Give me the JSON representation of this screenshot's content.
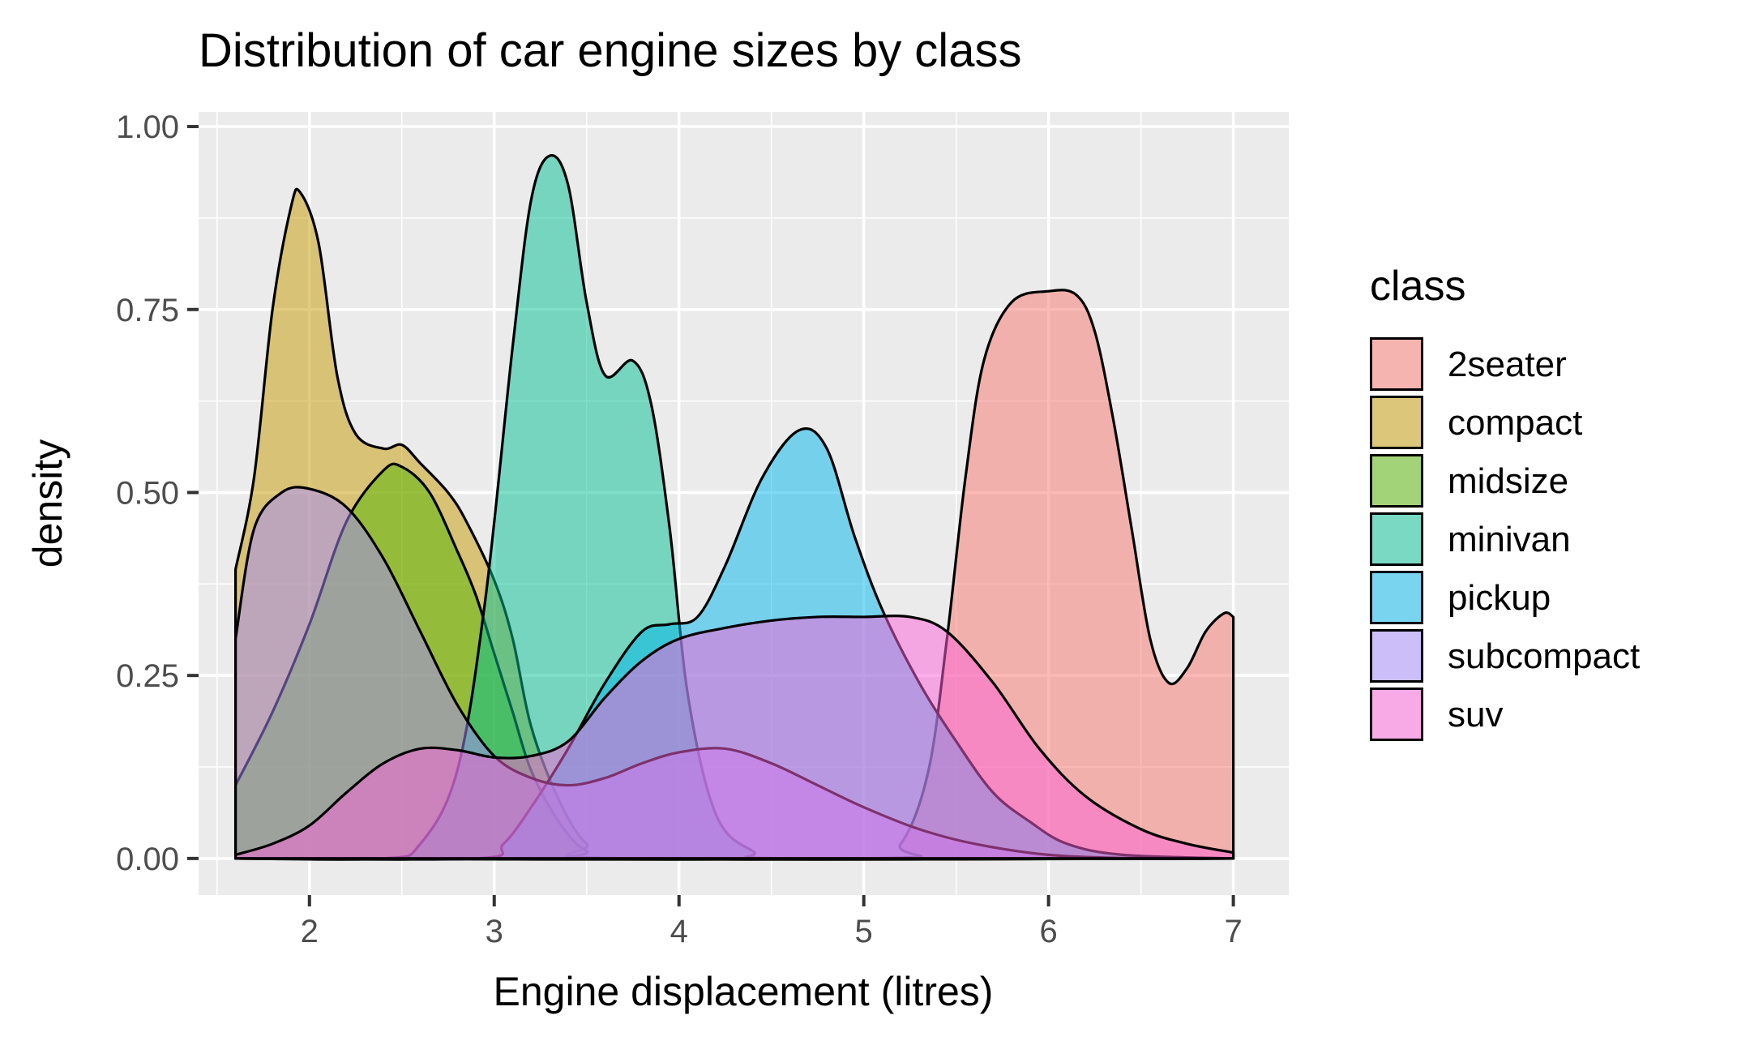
{
  "chart_data": {
    "type": "area",
    "title": "Distribution of car engine sizes by class",
    "xlabel": "Engine displacement (litres)",
    "ylabel": "density",
    "xlim": [
      1.4,
      7.3
    ],
    "ylim": [
      -0.05,
      1.02
    ],
    "x_ticks": [
      2,
      3,
      4,
      5,
      6,
      7
    ],
    "x_tick_labels": [
      "2",
      "3",
      "4",
      "5",
      "6",
      "7"
    ],
    "y_ticks": [
      0,
      0.25,
      0.5,
      0.75,
      1.0
    ],
    "y_tick_labels": [
      "0.00",
      "0.25",
      "0.50",
      "0.75",
      "1.00"
    ],
    "grid": true,
    "legend": {
      "title": "class",
      "placement": "right",
      "entries": [
        "2seater",
        "compact",
        "midsize",
        "minivan",
        "pickup",
        "subcompact",
        "suv"
      ]
    },
    "series": [
      {
        "name": "2seater",
        "color": "#F8766D",
        "points": [
          [
            1.6,
            0.0
          ],
          [
            5.0,
            0.0
          ],
          [
            5.2,
            0.02
          ],
          [
            5.35,
            0.12
          ],
          [
            5.45,
            0.3
          ],
          [
            5.55,
            0.52
          ],
          [
            5.65,
            0.68
          ],
          [
            5.8,
            0.76
          ],
          [
            6.0,
            0.775
          ],
          [
            6.15,
            0.77
          ],
          [
            6.25,
            0.72
          ],
          [
            6.35,
            0.6
          ],
          [
            6.45,
            0.45
          ],
          [
            6.55,
            0.3
          ],
          [
            6.65,
            0.24
          ],
          [
            6.75,
            0.26
          ],
          [
            6.85,
            0.31
          ],
          [
            6.95,
            0.335
          ],
          [
            7.0,
            0.33
          ]
        ]
      },
      {
        "name": "compact",
        "color": "#C49A00",
        "points": [
          [
            1.6,
            0.395
          ],
          [
            1.7,
            0.52
          ],
          [
            1.8,
            0.75
          ],
          [
            1.9,
            0.89
          ],
          [
            1.95,
            0.91
          ],
          [
            2.05,
            0.84
          ],
          [
            2.15,
            0.66
          ],
          [
            2.25,
            0.58
          ],
          [
            2.4,
            0.56
          ],
          [
            2.5,
            0.565
          ],
          [
            2.6,
            0.54
          ],
          [
            2.75,
            0.5
          ],
          [
            2.85,
            0.46
          ],
          [
            3.0,
            0.38
          ],
          [
            3.1,
            0.3
          ],
          [
            3.2,
            0.18
          ],
          [
            3.35,
            0.08
          ],
          [
            3.5,
            0.02
          ],
          [
            3.7,
            0.0
          ],
          [
            7.0,
            0.0
          ]
        ]
      },
      {
        "name": "midsize",
        "color": "#53B400",
        "points": [
          [
            1.6,
            0.1
          ],
          [
            1.8,
            0.2
          ],
          [
            2.0,
            0.32
          ],
          [
            2.2,
            0.46
          ],
          [
            2.4,
            0.53
          ],
          [
            2.5,
            0.535
          ],
          [
            2.65,
            0.5
          ],
          [
            2.8,
            0.42
          ],
          [
            2.9,
            0.36
          ],
          [
            3.0,
            0.28
          ],
          [
            3.1,
            0.2
          ],
          [
            3.2,
            0.12
          ],
          [
            3.35,
            0.05
          ],
          [
            3.5,
            0.01
          ],
          [
            3.7,
            0.0
          ],
          [
            7.0,
            0.0
          ]
        ]
      },
      {
        "name": "minivan",
        "color": "#00C094",
        "points": [
          [
            1.6,
            0.0
          ],
          [
            2.4,
            0.0
          ],
          [
            2.6,
            0.02
          ],
          [
            2.8,
            0.12
          ],
          [
            2.95,
            0.35
          ],
          [
            3.1,
            0.7
          ],
          [
            3.2,
            0.9
          ],
          [
            3.3,
            0.96
          ],
          [
            3.4,
            0.92
          ],
          [
            3.5,
            0.76
          ],
          [
            3.6,
            0.66
          ],
          [
            3.75,
            0.68
          ],
          [
            3.85,
            0.62
          ],
          [
            3.95,
            0.45
          ],
          [
            4.05,
            0.22
          ],
          [
            4.2,
            0.06
          ],
          [
            4.4,
            0.01
          ],
          [
            4.6,
            0.0
          ],
          [
            7.0,
            0.0
          ]
        ]
      },
      {
        "name": "pickup",
        "color": "#00B6EB",
        "points": [
          [
            1.6,
            0.0
          ],
          [
            2.9,
            0.0
          ],
          [
            3.05,
            0.02
          ],
          [
            3.2,
            0.07
          ],
          [
            3.4,
            0.15
          ],
          [
            3.6,
            0.24
          ],
          [
            3.8,
            0.31
          ],
          [
            3.95,
            0.32
          ],
          [
            4.1,
            0.33
          ],
          [
            4.25,
            0.4
          ],
          [
            4.45,
            0.52
          ],
          [
            4.65,
            0.585
          ],
          [
            4.8,
            0.56
          ],
          [
            4.95,
            0.44
          ],
          [
            5.1,
            0.34
          ],
          [
            5.3,
            0.24
          ],
          [
            5.5,
            0.16
          ],
          [
            5.7,
            0.09
          ],
          [
            5.9,
            0.05
          ],
          [
            6.1,
            0.02
          ],
          [
            6.4,
            0.005
          ],
          [
            7.0,
            0.0
          ]
        ]
      },
      {
        "name": "subcompact",
        "color": "#A58AFF",
        "points": [
          [
            1.6,
            0.3
          ],
          [
            1.7,
            0.45
          ],
          [
            1.85,
            0.5
          ],
          [
            2.0,
            0.505
          ],
          [
            2.2,
            0.48
          ],
          [
            2.4,
            0.41
          ],
          [
            2.6,
            0.31
          ],
          [
            2.8,
            0.21
          ],
          [
            3.0,
            0.14
          ],
          [
            3.2,
            0.11
          ],
          [
            3.4,
            0.1
          ],
          [
            3.6,
            0.11
          ],
          [
            3.8,
            0.13
          ],
          [
            4.0,
            0.145
          ],
          [
            4.25,
            0.15
          ],
          [
            4.5,
            0.13
          ],
          [
            4.75,
            0.1
          ],
          [
            5.0,
            0.07
          ],
          [
            5.3,
            0.04
          ],
          [
            5.6,
            0.02
          ],
          [
            6.0,
            0.005
          ],
          [
            6.5,
            0.0
          ],
          [
            7.0,
            0.0
          ]
        ]
      },
      {
        "name": "suv",
        "color": "#FB61D7",
        "points": [
          [
            1.6,
            0.005
          ],
          [
            1.8,
            0.02
          ],
          [
            2.0,
            0.045
          ],
          [
            2.2,
            0.09
          ],
          [
            2.4,
            0.13
          ],
          [
            2.6,
            0.15
          ],
          [
            2.8,
            0.148
          ],
          [
            3.0,
            0.138
          ],
          [
            3.2,
            0.14
          ],
          [
            3.4,
            0.16
          ],
          [
            3.6,
            0.22
          ],
          [
            3.8,
            0.27
          ],
          [
            4.0,
            0.3
          ],
          [
            4.25,
            0.315
          ],
          [
            4.5,
            0.325
          ],
          [
            4.75,
            0.33
          ],
          [
            5.0,
            0.33
          ],
          [
            5.25,
            0.33
          ],
          [
            5.45,
            0.31
          ],
          [
            5.7,
            0.24
          ],
          [
            5.95,
            0.15
          ],
          [
            6.2,
            0.085
          ],
          [
            6.5,
            0.04
          ],
          [
            6.75,
            0.02
          ],
          [
            7.0,
            0.008
          ]
        ]
      }
    ]
  }
}
